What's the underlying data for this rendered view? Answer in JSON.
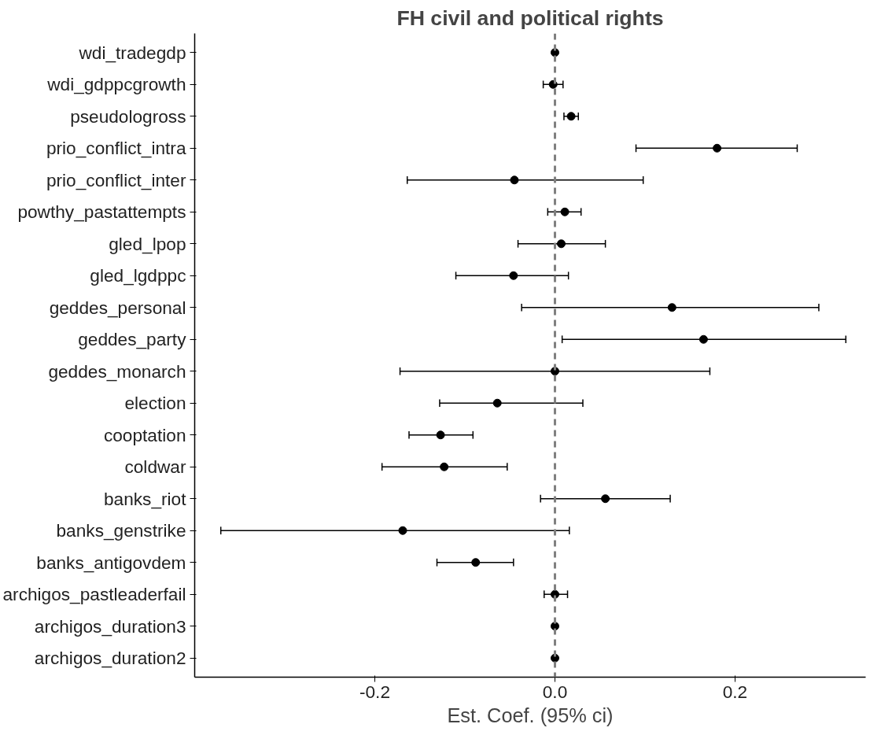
{
  "chart_data": {
    "type": "scatter",
    "title": "FH civil and political rights",
    "xlabel": "Est. Coef. (95% ci)",
    "orientation": "horizontal",
    "categories": [
      "wdi_tradegdp",
      "wdi_gdppcgrowth",
      "pseudologross",
      "prio_conflict_intra",
      "prio_conflict_inter",
      "powthy_pastattempts",
      "gled_lpop",
      "gled_lgdppc",
      "geddes_personal",
      "geddes_party",
      "geddes_monarch",
      "election",
      "cooptation",
      "coldwar",
      "banks_riot",
      "banks_genstrike",
      "banks_antigovdem",
      "archigos_pastleaderfail",
      "archigos_duration3",
      "archigos_duration2"
    ],
    "series": [
      {
        "color": "#000000",
        "values": [
          0.0,
          -0.002,
          0.018,
          0.18,
          -0.045,
          0.011,
          0.007,
          -0.046,
          0.13,
          0.165,
          0.0,
          -0.064,
          -0.127,
          -0.123,
          0.056,
          -0.169,
          -0.088,
          0.0,
          0.0,
          0.0
        ],
        "errors": [
          null,
          [
            -0.013,
            0.009
          ],
          [
            0.01,
            0.026
          ],
          [
            0.09,
            0.269
          ],
          [
            -0.164,
            0.098
          ],
          [
            -0.008,
            0.029
          ],
          [
            -0.041,
            0.056
          ],
          [
            -0.11,
            0.015
          ],
          [
            -0.037,
            0.293
          ],
          [
            0.008,
            0.323
          ],
          [
            -0.172,
            0.172
          ],
          [
            -0.128,
            0.031
          ],
          [
            -0.162,
            -0.091
          ],
          [
            -0.192,
            -0.053
          ],
          [
            -0.016,
            0.128
          ],
          [
            -0.371,
            0.016
          ],
          [
            -0.131,
            -0.046
          ],
          [
            -0.012,
            0.014
          ],
          null,
          null
        ]
      }
    ],
    "xlim": [
      -0.4,
      0.345
    ],
    "xticks": [
      -0.2,
      {
        "value": 0,
        "label": "0.0"
      },
      0.2
    ],
    "ref_lines": [
      {
        "axis": "x",
        "value": 0,
        "color": "#808080",
        "line_style": "dashed"
      }
    ],
    "grid": false,
    "marker": "circle"
  }
}
